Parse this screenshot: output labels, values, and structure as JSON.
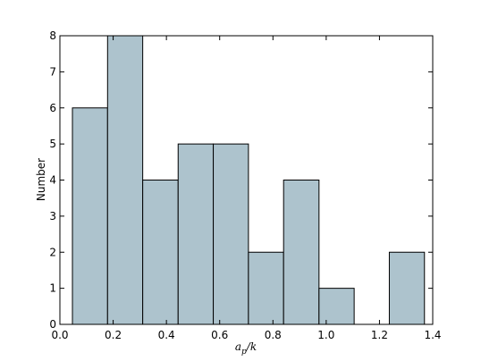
{
  "chart_data": {
    "type": "histogram",
    "xlabel": "ap/k",
    "ylabel": "Number",
    "bins": [
      0.047,
      0.179,
      0.311,
      0.444,
      0.576,
      0.708,
      0.84,
      0.973,
      1.105,
      1.237,
      1.369
    ],
    "values": [
      6,
      8,
      4,
      5,
      5,
      2,
      4,
      1,
      0,
      2
    ],
    "color": "#adc3cd",
    "xlim": [
      0,
      1.4
    ],
    "xticks": [
      {
        "value": 0,
        "label": "0.0"
      },
      {
        "value": 0.2,
        "label": "0.2"
      },
      {
        "value": 0.4,
        "label": "0.4"
      },
      {
        "value": 0.6,
        "label": "0.6"
      },
      {
        "value": 0.8,
        "label": "0.8"
      },
      {
        "value": 1.0,
        "label": "1.0"
      },
      {
        "value": 1.2,
        "label": "1.2"
      },
      {
        "value": 1.4,
        "label": "1.4"
      }
    ],
    "ylim": [
      0,
      8
    ],
    "yticks": [
      0,
      1,
      2,
      3,
      4,
      5,
      6,
      7,
      8
    ],
    "grid": false
  }
}
